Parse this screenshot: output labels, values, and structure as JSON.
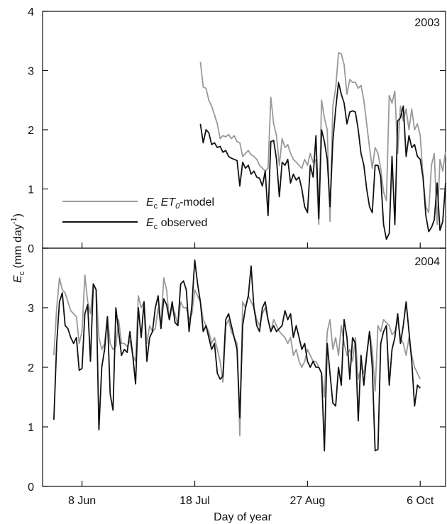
{
  "chart_data": {
    "type": "line",
    "xlabel": "Day of year",
    "ylabel_main": "E",
    "ylabel_sub": "c",
    "ylabel_units": " (mm day",
    "ylabel_units_sup": "-1",
    "ylabel_units_close": ")",
    "xlim": [
      145,
      288
    ],
    "x_ticks": [
      {
        "doy": 159,
        "label": "8 Jun"
      },
      {
        "doy": 199,
        "label": "18 Jul"
      },
      {
        "doy": 239,
        "label": "27 Aug"
      },
      {
        "doy": 279,
        "label": "6 Oct"
      }
    ],
    "grid": false,
    "legend": {
      "placement": "lower-left of top panel",
      "model": {
        "sym": "E",
        "sub": "c",
        "gap": " ",
        "mid": "ET",
        "mid_sub": "0",
        "rest": "-model",
        "color": "#999999"
      },
      "observed": {
        "sym": "E",
        "sub": "c",
        "rest": " observed",
        "color": "#111111"
      }
    },
    "panels": [
      {
        "label": "2003",
        "ylim": [
          0,
          4
        ],
        "y_ticks": [
          0,
          1,
          2,
          3,
          4
        ],
        "series": [
          {
            "key": "model",
            "color": "#999999",
            "x": [
              201,
              202,
              203,
              204,
              205,
              206,
              207,
              208,
              209,
              210,
              211,
              212,
              213,
              214,
              215,
              216,
              217,
              218,
              219,
              220,
              221,
              222,
              223,
              224,
              225,
              226,
              227,
              228,
              229,
              230,
              231,
              232,
              233,
              234,
              235,
              236,
              237,
              238,
              239,
              240,
              241,
              242,
              243,
              244,
              245,
              246,
              247,
              248,
              249,
              250,
              251,
              252,
              253,
              254,
              255,
              256,
              257,
              258,
              259,
              260,
              261,
              262,
              263,
              264,
              265,
              266,
              267,
              268,
              269,
              270,
              271,
              272,
              273,
              274,
              275,
              276,
              277,
              278,
              279,
              280,
              281,
              282,
              283,
              284,
              285,
              286,
              287,
              288
            ],
            "y": [
              3.15,
              2.72,
              2.7,
              2.5,
              2.4,
              2.25,
              2.1,
              1.85,
              1.9,
              1.88,
              1.92,
              1.85,
              1.9,
              1.8,
              1.78,
              1.55,
              1.6,
              1.65,
              1.58,
              1.55,
              1.5,
              1.4,
              1.35,
              1.3,
              1.35,
              2.55,
              2.1,
              1.9,
              1.4,
              1.85,
              1.7,
              1.75,
              1.6,
              1.5,
              1.45,
              1.4,
              1.35,
              1.5,
              1.4,
              1.6,
              1.45,
              1.5,
              0.4,
              2.5,
              2.2,
              2.0,
              0.45,
              2.4,
              2.7,
              3.3,
              3.28,
              3.1,
              2.6,
              2.85,
              2.8,
              2.8,
              2.7,
              2.75,
              2.5,
              2.1,
              1.7,
              1.35,
              1.7,
              1.6,
              1.35,
              0.95,
              0.8,
              2.58,
              2.45,
              2.65,
              1.6,
              2.4,
              2.15,
              2.35,
              2.0,
              2.35,
              2.0,
              2.1,
              1.9,
              1.2,
              0.7,
              0.6,
              1.4,
              1.6,
              0.4,
              1.5,
              1.3,
              1.63
            ]
          },
          {
            "key": "observed",
            "color": "#111111",
            "x": [
              201,
              202,
              203,
              204,
              205,
              206,
              207,
              208,
              209,
              210,
              211,
              212,
              213,
              214,
              215,
              216,
              217,
              218,
              219,
              220,
              221,
              222,
              223,
              224,
              225,
              226,
              227,
              228,
              229,
              230,
              231,
              232,
              233,
              234,
              235,
              236,
              237,
              238,
              239,
              240,
              241,
              242,
              243,
              244,
              245,
              246,
              247,
              248,
              249,
              250,
              251,
              252,
              253,
              254,
              255,
              256,
              257,
              258,
              259,
              260,
              261,
              262,
              263,
              264,
              265,
              266,
              267,
              268,
              269,
              270,
              271,
              272,
              273,
              274,
              275,
              276,
              277,
              278,
              279,
              280,
              281,
              282,
              283,
              284,
              285,
              286,
              287,
              288
            ],
            "y": [
              2.1,
              1.78,
              2.0,
              1.95,
              1.75,
              1.78,
              1.7,
              1.72,
              1.62,
              1.65,
              1.55,
              1.52,
              1.5,
              1.48,
              1.05,
              1.45,
              1.35,
              1.4,
              1.25,
              1.3,
              1.2,
              1.18,
              1.05,
              1.3,
              0.55,
              1.8,
              1.82,
              1.5,
              0.87,
              1.45,
              1.4,
              1.5,
              1.1,
              1.25,
              1.15,
              1.2,
              1.0,
              0.7,
              0.6,
              1.4,
              1.2,
              1.9,
              0.5,
              2.0,
              1.8,
              1.5,
              0.7,
              1.8,
              2.35,
              2.8,
              2.6,
              2.45,
              2.1,
              2.3,
              2.32,
              2.3,
              2.0,
              1.6,
              1.4,
              1.0,
              0.7,
              0.6,
              1.4,
              1.4,
              1.2,
              0.4,
              0.15,
              0.25,
              1.55,
              0.4,
              2.15,
              2.2,
              2.4,
              1.55,
              1.9,
              1.7,
              1.75,
              1.55,
              1.5,
              1.2,
              0.55,
              0.28,
              0.35,
              0.48,
              1.1,
              0.3,
              0.45,
              1.1
            ]
          }
        ]
      },
      {
        "label": "2004",
        "ylim": [
          0,
          4
        ],
        "y_ticks": [
          0,
          1,
          2,
          3,
          4
        ],
        "series": [
          {
            "key": "model",
            "color": "#999999",
            "x": [
              149,
              150,
              151,
              152,
              153,
              154,
              155,
              156,
              157,
              158,
              159,
              160,
              161,
              162,
              163,
              164,
              165,
              166,
              167,
              168,
              169,
              170,
              171,
              172,
              173,
              174,
              175,
              176,
              177,
              178,
              179,
              180,
              181,
              182,
              183,
              184,
              185,
              186,
              187,
              188,
              189,
              190,
              191,
              192,
              193,
              194,
              195,
              196,
              197,
              198,
              199,
              200,
              201,
              202,
              203,
              204,
              205,
              206,
              207,
              208,
              209,
              210,
              211,
              212,
              213,
              214,
              215,
              216,
              217,
              218,
              219,
              220,
              221,
              222,
              223,
              224,
              225,
              226,
              227,
              228,
              229,
              230,
              231,
              232,
              233,
              234,
              235,
              236,
              237,
              238,
              239,
              240,
              241,
              242,
              243,
              244,
              245,
              246,
              247,
              248,
              249,
              250,
              251,
              252,
              253,
              254,
              255,
              256,
              257,
              258,
              259,
              260,
              261,
              262,
              263,
              264,
              265,
              266,
              267,
              268,
              269,
              270,
              271,
              272,
              273,
              274,
              275,
              276,
              277,
              278,
              279
            ],
            "y": [
              2.2,
              3.0,
              3.5,
              3.3,
              3.25,
              3.1,
              2.95,
              2.9,
              2.85,
              2.4,
              2.6,
              3.55,
              3.1,
              2.9,
              3.4,
              3.3,
              2.5,
              2.3,
              2.4,
              2.85,
              2.4,
              2.3,
              2.35,
              2.8,
              2.4,
              2.4,
              2.35,
              2.45,
              2.2,
              2.1,
              3.2,
              3.0,
              3.1,
              2.4,
              2.7,
              2.6,
              2.65,
              3.0,
              2.7,
              3.5,
              3.3,
              2.8,
              3.0,
              2.9,
              2.7,
              3.1,
              3.0,
              3.0,
              2.8,
              2.9,
              3.3,
              3.2,
              3.1,
              2.8,
              2.7,
              2.6,
              2.4,
              2.5,
              2.3,
              2.1,
              1.75,
              2.7,
              2.8,
              2.6,
              2.5,
              2.4,
              0.85,
              3.1,
              3.0,
              3.2,
              3.1,
              3.0,
              2.8,
              2.7,
              2.9,
              3.0,
              2.8,
              2.6,
              2.8,
              2.7,
              2.6,
              2.55,
              2.5,
              2.4,
              2.5,
              2.2,
              2.3,
              2.1,
              2.0,
              2.1,
              2.3,
              2.2,
              2.1,
              2.1,
              2.0,
              1.9,
              1.5,
              2.6,
              2.8,
              2.3,
              2.5,
              2.2,
              2.7,
              2.4,
              2.2,
              2.3,
              2.1,
              2.5,
              1.8,
              2.0,
              1.9,
              2.2,
              2.6,
              2.3,
              1.6,
              2.7,
              2.6,
              2.8,
              2.75,
              2.7,
              2.55,
              2.6,
              2.8,
              2.5,
              2.4,
              2.2,
              2.5,
              2.2,
              2.0,
              1.9,
              1.8
            ]
          },
          {
            "key": "observed",
            "color": "#111111",
            "x": [
              149,
              150,
              151,
              152,
              153,
              154,
              155,
              156,
              157,
              158,
              159,
              160,
              161,
              162,
              163,
              164,
              165,
              166,
              167,
              168,
              169,
              170,
              171,
              172,
              173,
              174,
              175,
              176,
              177,
              178,
              179,
              180,
              181,
              182,
              183,
              184,
              185,
              186,
              187,
              188,
              189,
              190,
              191,
              192,
              193,
              194,
              195,
              196,
              197,
              198,
              199,
              200,
              201,
              202,
              203,
              204,
              205,
              206,
              207,
              208,
              209,
              210,
              211,
              212,
              213,
              214,
              215,
              216,
              217,
              218,
              219,
              220,
              221,
              222,
              223,
              224,
              225,
              226,
              227,
              228,
              229,
              230,
              231,
              232,
              233,
              234,
              235,
              236,
              237,
              238,
              239,
              240,
              241,
              242,
              243,
              244,
              245,
              246,
              247,
              248,
              249,
              250,
              251,
              252,
              253,
              254,
              255,
              256,
              257,
              258,
              259,
              260,
              261,
              262,
              263,
              264,
              265,
              266,
              267,
              268,
              269,
              270,
              271,
              272,
              273,
              274,
              275,
              276,
              277,
              278,
              279
            ],
            "y": [
              1.12,
              2.4,
              3.1,
              3.25,
              2.7,
              2.65,
              2.5,
              2.4,
              2.5,
              1.95,
              1.98,
              2.9,
              3.05,
              2.1,
              3.4,
              3.3,
              0.95,
              2.0,
              2.3,
              2.85,
              1.55,
              1.28,
              3.0,
              2.6,
              2.2,
              2.3,
              2.25,
              2.6,
              2.2,
              1.72,
              3.0,
              2.5,
              3.1,
              2.1,
              2.5,
              2.6,
              3.0,
              3.2,
              2.65,
              3.15,
              3.05,
              2.8,
              3.1,
              2.75,
              2.7,
              3.4,
              3.45,
              3.3,
              2.6,
              3.05,
              3.8,
              3.4,
              3.1,
              2.6,
              2.7,
              2.5,
              2.3,
              2.4,
              1.9,
              1.8,
              1.85,
              2.8,
              2.9,
              2.7,
              2.5,
              2.3,
              1.15,
              2.7,
              3.0,
              3.2,
              3.7,
              3.0,
              2.7,
              2.6,
              3.0,
              3.1,
              2.8,
              2.6,
              2.7,
              2.6,
              2.65,
              2.7,
              2.95,
              2.8,
              2.9,
              2.5,
              2.7,
              2.5,
              2.3,
              2.4,
              2.1,
              2.0,
              2.1,
              2.0,
              2.0,
              1.9,
              0.6,
              2.4,
              1.9,
              1.4,
              1.35,
              2.0,
              1.7,
              2.8,
              2.5,
              1.8,
              2.5,
              2.4,
              1.1,
              2.2,
              1.7,
              2.2,
              2.6,
              2.0,
              0.6,
              0.62,
              2.4,
              2.6,
              2.7,
              1.7,
              2.3,
              2.5,
              2.9,
              2.4,
              2.7,
              3.1,
              2.6,
              2.1,
              1.35,
              1.7,
              1.65
            ]
          }
        ]
      }
    ]
  }
}
